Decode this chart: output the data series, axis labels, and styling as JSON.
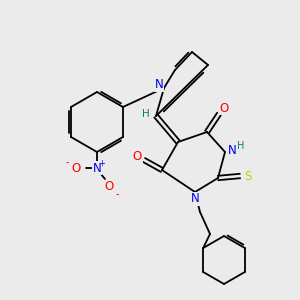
{
  "bg_color": "#ebebeb",
  "bond_color": "#000000",
  "atom_colors": {
    "N": "#0000ee",
    "O": "#ff0000",
    "S": "#cccc00",
    "H": "#008080",
    "C": "#000000"
  }
}
